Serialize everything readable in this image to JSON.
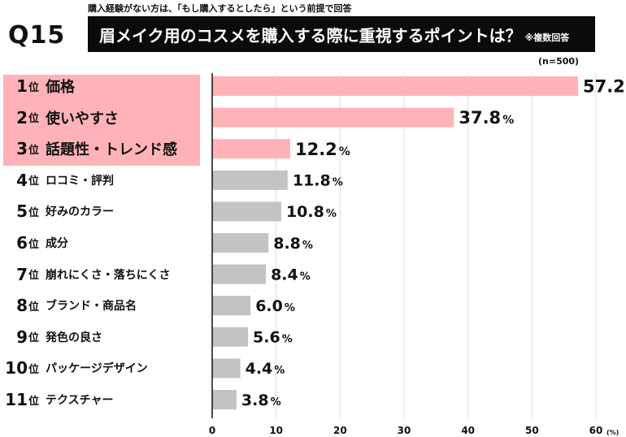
{
  "header": {
    "note": "購入経験がない方は、「もし購入するとしたら」という前提で回答",
    "question_number": "Q15",
    "question": "眉メイク用のコスメを購入する際に重視するポイントは？",
    "multi_answer": "※複数回答",
    "sample_size": "(n=500)"
  },
  "colors": {
    "highlight_bar": "#ffb3b8",
    "bar": "#c3c3c3",
    "header_bg": "#0b0b0b",
    "highlight_bg": "#ffb3b8"
  },
  "chart_data": {
    "type": "bar",
    "orientation": "horizontal",
    "rank_suffix": "位",
    "value_suffix": "%",
    "unit_label": "(%)",
    "xlim": [
      0,
      60
    ],
    "xticks": [
      0,
      10,
      20,
      30,
      40,
      50,
      60
    ],
    "grid": true,
    "highlight_top_n": 3,
    "categories": [
      {
        "rank": "1",
        "label": "価格",
        "value": 57.2,
        "value_label": "57.2"
      },
      {
        "rank": "2",
        "label": "使いやすさ",
        "value": 37.8,
        "value_label": "37.8"
      },
      {
        "rank": "3",
        "label": "話題性・トレンド感",
        "value": 12.2,
        "value_label": "12.2"
      },
      {
        "rank": "4",
        "label": "ロコミ・評判",
        "value": 11.8,
        "value_label": "11.8"
      },
      {
        "rank": "5",
        "label": "好みのカラー",
        "value": 10.8,
        "value_label": "10.8"
      },
      {
        "rank": "6",
        "label": "成分",
        "value": 8.8,
        "value_label": "8.8"
      },
      {
        "rank": "7",
        "label": "崩れにくさ・落ちにくさ",
        "value": 8.4,
        "value_label": "8.4"
      },
      {
        "rank": "8",
        "label": "ブランド・商品名",
        "value": 6.0,
        "value_label": "6.0"
      },
      {
        "rank": "9",
        "label": "発色の良さ",
        "value": 5.6,
        "value_label": "5.6"
      },
      {
        "rank": "10",
        "label": "パッケージデザイン",
        "value": 4.4,
        "value_label": "4.4"
      },
      {
        "rank": "11",
        "label": "テクスチャー",
        "value": 3.8,
        "value_label": "3.8"
      }
    ]
  }
}
